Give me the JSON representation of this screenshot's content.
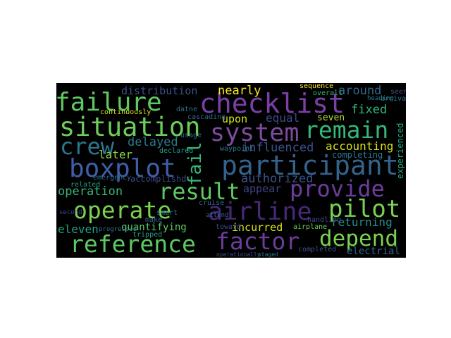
{
  "cloud": {
    "background": "#000000",
    "colormap": "viridis",
    "words": [
      {
        "text": "checklist",
        "color": "#7b3fa8"
      },
      {
        "text": "failure",
        "color": "#5ec962"
      },
      {
        "text": "situation",
        "color": "#6ccd5a"
      },
      {
        "text": "system",
        "color": "#7c4b9e"
      },
      {
        "text": "remain",
        "color": "#35b779"
      },
      {
        "text": "crew",
        "color": "#2a788e"
      },
      {
        "text": "boxplot",
        "color": "#3e5ea8"
      },
      {
        "text": "participant",
        "color": "#33638d"
      },
      {
        "text": "provide",
        "color": "#6a3d9a"
      },
      {
        "text": "result",
        "color": "#5ec962"
      },
      {
        "text": "operate",
        "color": "#7ad151"
      },
      {
        "text": "airline",
        "color": "#482878"
      },
      {
        "text": "pilot",
        "color": "#7ad151"
      },
      {
        "text": "reference",
        "color": "#5ec962"
      },
      {
        "text": "factor",
        "color": "#6a3d9a"
      },
      {
        "text": "depend",
        "color": "#7ad151"
      },
      {
        "text": "fail",
        "color": "#35b779"
      },
      {
        "text": "distribution",
        "color": "#3b528b"
      },
      {
        "text": "nearly",
        "color": "#fde725"
      },
      {
        "text": "around",
        "color": "#31688e"
      },
      {
        "text": "upon",
        "color": "#d8e219"
      },
      {
        "text": "equal",
        "color": "#3e4989"
      },
      {
        "text": "seven",
        "color": "#b5de2b"
      },
      {
        "text": "fixed",
        "color": "#2fb47c"
      },
      {
        "text": "delayed",
        "color": "#2a788e"
      },
      {
        "text": "influenced",
        "color": "#3b528b"
      },
      {
        "text": "accounting",
        "color": "#d8e219"
      },
      {
        "text": "later",
        "color": "#8fd744"
      },
      {
        "text": "authorized",
        "color": "#3b528b"
      },
      {
        "text": "operation",
        "color": "#35b779"
      },
      {
        "text": "appear",
        "color": "#414487"
      },
      {
        "text": "quantifying",
        "color": "#5ec962"
      },
      {
        "text": "incurred",
        "color": "#d8e219"
      },
      {
        "text": "returning",
        "color": "#21918c"
      },
      {
        "text": "eleven",
        "color": "#20a386"
      },
      {
        "text": "electrial",
        "color": "#31688e"
      },
      {
        "text": "completing",
        "color": "#2a788e"
      },
      {
        "text": "experienced",
        "color": "#22a884"
      },
      {
        "text": "accomplishd",
        "color": "#3e4989"
      },
      {
        "text": "continuously",
        "color": "#d8e219"
      },
      {
        "text": "declared",
        "color": "#1f9e89"
      },
      {
        "text": "tripped",
        "color": "#1f9e89"
      },
      {
        "text": "airplane",
        "color": "#6ccd5a"
      },
      {
        "text": "related",
        "color": "#1fa187"
      },
      {
        "text": "datne",
        "color": "#2c728e"
      },
      {
        "text": "sequence",
        "color": "#fde725"
      },
      {
        "text": "overall",
        "color": "#35b779"
      },
      {
        "text": "seen",
        "color": "#3b528b"
      },
      {
        "text": "arrival",
        "color": "#2a788e"
      },
      {
        "text": "cruise",
        "color": "#31688e"
      },
      {
        "text": "waypoint",
        "color": "#2a788e"
      },
      {
        "text": "completed",
        "color": "#3b528b"
      },
      {
        "text": "handling",
        "color": "#3e4989"
      },
      {
        "text": "emergency",
        "color": "#31688e"
      },
      {
        "text": "usage",
        "color": "#2c728e"
      },
      {
        "text": "smart",
        "color": "#2a788e"
      },
      {
        "text": "make",
        "color": "#355f8d"
      },
      {
        "text": "heading",
        "color": "#2a788e"
      },
      {
        "text": "toward",
        "color": "#3e4989"
      },
      {
        "text": "attend",
        "color": "#31688e"
      },
      {
        "text": "progressed",
        "color": "#2a788e"
      },
      {
        "text": "operationally",
        "color": "#3b528b"
      },
      {
        "text": "staged",
        "color": "#2a788e"
      },
      {
        "text": "second",
        "color": "#3e4989"
      },
      {
        "text": "cascading",
        "color": "#31688e"
      }
    ]
  }
}
